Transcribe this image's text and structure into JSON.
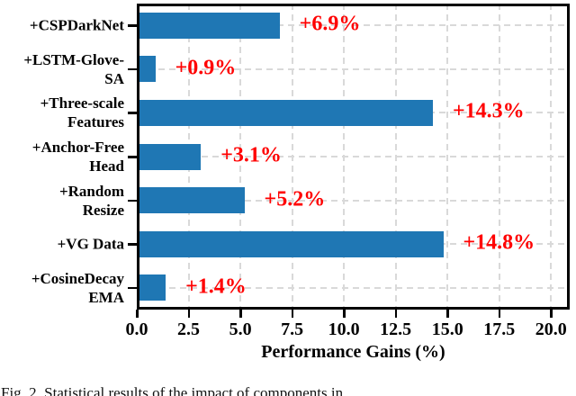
{
  "figure": {
    "caption": "Fig. 2. Statistical results of the impact of components in"
  },
  "chart_data": {
    "type": "bar",
    "orientation": "horizontal",
    "title": "",
    "xlabel": "Performance Gains (%)",
    "ylabel": "",
    "categories": [
      "+CSPDarkNet",
      "+LSTM-Glove-\nSA",
      "+Three-scale\nFeatures",
      "+Anchor-Free\nHead",
      "+Random\nResize",
      "+VG Data",
      "+CosineDecay\nEMA"
    ],
    "values": [
      6.9,
      0.9,
      14.3,
      3.1,
      5.2,
      14.8,
      1.4
    ],
    "bar_labels": [
      "+6.9%",
      "+0.9%",
      "+14.3%",
      "+3.1%",
      "+5.2%",
      "+14.8%",
      "+1.4%"
    ],
    "x_ticks": [
      0,
      2.5,
      5,
      7.5,
      10,
      12.5,
      15,
      17.5,
      20
    ],
    "x_tick_labels": [
      "0.0",
      "2.5",
      "5.0",
      "7.5",
      "10.0",
      "12.5",
      "15.0",
      "17.5",
      "20.0"
    ],
    "xlim": [
      0,
      20.9
    ],
    "grid": true,
    "grid_style": "dashed",
    "legend": false,
    "colors": {
      "bar": "#1f77b4",
      "annotation": "#ff0000",
      "grid": "#d9d9d9",
      "axis": "#000000",
      "background": "#ffffff"
    }
  }
}
